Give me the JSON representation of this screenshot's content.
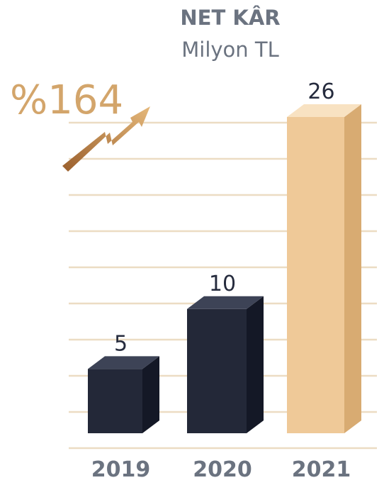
{
  "chart_data": {
    "type": "bar",
    "title": "NET KÂR",
    "subtitle": "Milyon TL",
    "categories": [
      "2019",
      "2020",
      "2021"
    ],
    "values": [
      5,
      10,
      26
    ],
    "value_labels": [
      "5",
      "10",
      "26"
    ],
    "growth_label": "%164",
    "ylim": [
      0,
      26
    ],
    "grid": true,
    "xlabel": "",
    "ylabel": ""
  },
  "colors": {
    "title_text": "#6b7380",
    "grid_line": "#ecdcc3",
    "bar_front_dark": "#232838",
    "bar_side_dark": "#141826",
    "bar_top_dark": "#3d4356",
    "bar_front_gold": "#efc998",
    "bar_side_gold": "#d8ab72",
    "bar_top_gold": "#f8e2c2",
    "label_dark": "#252b3d",
    "growth_text": "#d3a56b",
    "arrow_light": "#e5b87a",
    "arrow_dark": "#9a5f2c"
  }
}
